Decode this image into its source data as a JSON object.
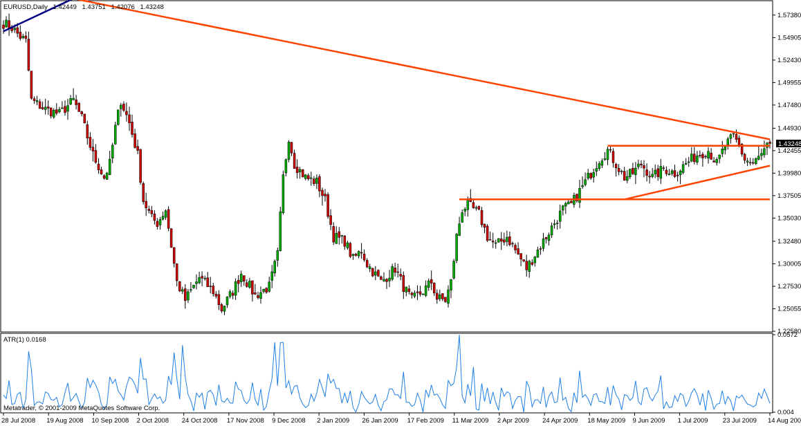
{
  "chart_data": [
    {
      "type": "candlestick",
      "title": "EURUSD,Daily",
      "ohlc_label": {
        "open": "1.42449",
        "high": "1.43751",
        "low": "1.42076",
        "close": "1.43248"
      },
      "last_price": "1.43248",
      "ylim": [
        1.2258,
        1.5889
      ],
      "yticks": [
        "1.57380",
        "1.54905",
        "1.52430",
        "1.49955",
        "1.47480",
        "1.44930",
        "1.42455",
        "1.39980",
        "1.37505",
        "1.35030",
        "1.32480",
        "1.30005",
        "1.27530",
        "1.25055",
        "1.22580"
      ],
      "xticks": [
        "28 Jul 2008",
        "19 Aug 2008",
        "10 Sep 2008",
        "2 Oct 2008",
        "24 Oct 2008",
        "17 Nov 2008",
        "9 Dec 2008",
        "2 Jan 2009",
        "26 Jan 2009",
        "17 Feb 2009",
        "11 Mar 2009",
        "2 Apr 2009",
        "24 Apr 2009",
        "18 May 2009",
        "9 Jun 2009",
        "1 Jul 2009",
        "23 Jul 2009",
        "14 Aug 2009"
      ],
      "bar_count": 275,
      "close_anchors": [
        [
          0,
          1.565
        ],
        [
          3,
          1.56
        ],
        [
          6,
          1.55
        ],
        [
          8,
          1.545
        ],
        [
          10,
          1.48
        ],
        [
          15,
          1.47
        ],
        [
          20,
          1.465
        ],
        [
          25,
          1.48
        ],
        [
          28,
          1.46
        ],
        [
          32,
          1.42
        ],
        [
          36,
          1.395
        ],
        [
          38,
          1.41
        ],
        [
          40,
          1.45
        ],
        [
          42,
          1.48
        ],
        [
          45,
          1.455
        ],
        [
          48,
          1.42
        ],
        [
          50,
          1.37
        ],
        [
          53,
          1.35
        ],
        [
          55,
          1.345
        ],
        [
          58,
          1.36
        ],
        [
          62,
          1.28
        ],
        [
          65,
          1.26
        ],
        [
          70,
          1.285
        ],
        [
          75,
          1.27
        ],
        [
          78,
          1.25
        ],
        [
          82,
          1.27
        ],
        [
          85,
          1.29
        ],
        [
          90,
          1.265
        ],
        [
          95,
          1.275
        ],
        [
          98,
          1.31
        ],
        [
          100,
          1.395
        ],
        [
          102,
          1.44
        ],
        [
          104,
          1.41
        ],
        [
          108,
          1.395
        ],
        [
          112,
          1.39
        ],
        [
          115,
          1.37
        ],
        [
          118,
          1.33
        ],
        [
          122,
          1.325
        ],
        [
          125,
          1.305
        ],
        [
          128,
          1.315
        ],
        [
          130,
          1.3
        ],
        [
          135,
          1.28
        ],
        [
          140,
          1.295
        ],
        [
          143,
          1.275
        ],
        [
          146,
          1.26
        ],
        [
          150,
          1.27
        ],
        [
          153,
          1.28
        ],
        [
          155,
          1.262
        ],
        [
          158,
          1.26
        ],
        [
          160,
          1.28
        ],
        [
          162,
          1.33
        ],
        [
          164,
          1.36
        ],
        [
          166,
          1.365
        ],
        [
          170,
          1.355
        ],
        [
          173,
          1.33
        ],
        [
          176,
          1.32
        ],
        [
          180,
          1.33
        ],
        [
          184,
          1.31
        ],
        [
          187,
          1.295
        ],
        [
          190,
          1.31
        ],
        [
          194,
          1.33
        ],
        [
          197,
          1.345
        ],
        [
          200,
          1.36
        ],
        [
          203,
          1.365
        ],
        [
          206,
          1.38
        ],
        [
          210,
          1.4
        ],
        [
          213,
          1.415
        ],
        [
          216,
          1.425
        ],
        [
          219,
          1.41
        ],
        [
          222,
          1.395
        ],
        [
          225,
          1.4
        ],
        [
          228,
          1.41
        ],
        [
          232,
          1.395
        ],
        [
          236,
          1.405
        ],
        [
          240,
          1.4
        ],
        [
          244,
          1.41
        ],
        [
          248,
          1.42
        ],
        [
          252,
          1.425
        ],
        [
          255,
          1.41
        ],
        [
          258,
          1.43
        ],
        [
          261,
          1.44
        ],
        [
          263,
          1.43
        ],
        [
          265,
          1.415
        ],
        [
          268,
          1.41
        ],
        [
          271,
          1.42
        ],
        [
          274,
          1.43248
        ]
      ],
      "trendlines": [
        {
          "color": "#ff4400",
          "from": [
            25,
            1.592
          ],
          "to": [
            274,
            1.437
          ]
        },
        {
          "color": "#ff4400",
          "from": [
            216,
            1.43
          ],
          "to": [
            274,
            1.43
          ]
        },
        {
          "color": "#ff4400",
          "from": [
            163,
            1.371
          ],
          "to": [
            274,
            1.371
          ]
        },
        {
          "color": "#ff4400",
          "from": [
            222,
            1.371
          ],
          "to": [
            274,
            1.408
          ]
        },
        {
          "color": "#000080",
          "from": [
            0,
            1.556
          ],
          "to": [
            25,
            1.592
          ]
        }
      ],
      "colors": {
        "bull": "#00aa00",
        "bear": "#cc0000",
        "trendline": "#ff4400",
        "line": "#000080"
      }
    },
    {
      "type": "line",
      "indicator": "ATR(1)",
      "label": "ATR(1) 0.0168",
      "ylim": [
        0.004,
        0.0572
      ],
      "yticks": [
        "0.0572",
        "0.004"
      ],
      "color": "#1e7fe6",
      "spikes": [
        [
          163,
          0.0572
        ],
        [
          97,
          0.052
        ],
        [
          100,
          0.052
        ],
        [
          64,
          0.05
        ],
        [
          61,
          0.045
        ],
        [
          168,
          0.035
        ]
      ]
    }
  ],
  "copyright": "Metatrader, © 2001-2009 MetaQuotes Software Corp."
}
